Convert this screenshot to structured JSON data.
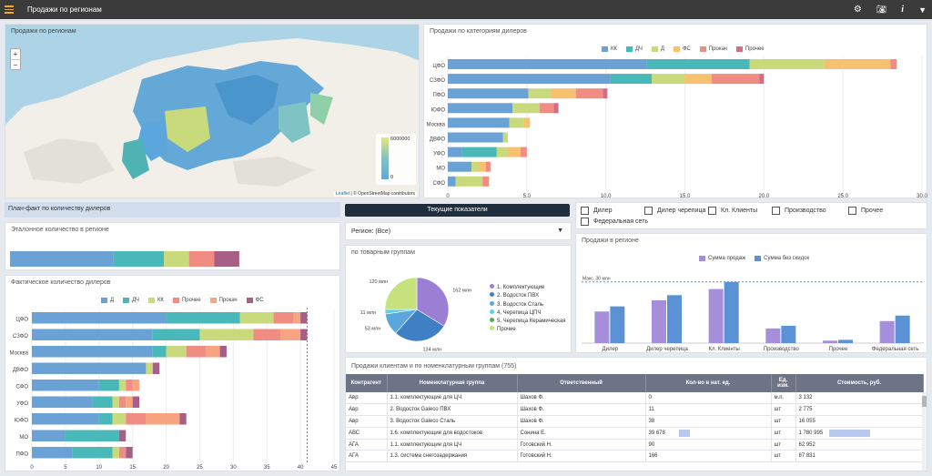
{
  "app": {
    "title": "Продажи по регионам"
  },
  "map": {
    "title": "Продажи по регионам",
    "zoom_in": "+",
    "zoom_out": "−",
    "legend_max": "6000000",
    "legend_min": "0",
    "attribution_leaflet": "Leaflet",
    "attribution_rest": " | © OpenStreetMap contributors",
    "color_high": "#e8e57a",
    "color_low": "#63a8d6"
  },
  "cat_chart": {
    "title": "Продажи по категориям дилеров",
    "legend": [
      "КК",
      "ДЧ",
      "Д",
      "ФС",
      "Прокач",
      "Прочее"
    ],
    "colors": [
      "#6aa2d6",
      "#49b8b8",
      "#c9da7c",
      "#f7c26f",
      "#f08c82",
      "#d76c83"
    ],
    "chart_data": {
      "type": "bar",
      "orientation": "horizontal",
      "stacked": true,
      "categories": [
        "ЦФО",
        "СЗФО",
        "ПФО",
        "ЮФО",
        "Москва",
        "ДВФО",
        "УФО",
        "МО",
        "СФО"
      ],
      "series": [
        {
          "name": "КК",
          "values": [
            12.6,
            10.3,
            5.1,
            4.1,
            3.9,
            3.5,
            0.9,
            1.5,
            0.5
          ]
        },
        {
          "name": "ДЧ",
          "values": [
            6.5,
            2.6,
            0,
            0,
            0,
            0,
            2.2,
            0,
            0
          ]
        },
        {
          "name": "Д",
          "values": [
            4.7,
            2.1,
            1.4,
            1.7,
            0.9,
            0.3,
            0.7,
            0.4,
            1.7
          ]
        },
        {
          "name": "ФС",
          "values": [
            4.2,
            1.7,
            1.6,
            0,
            0.4,
            0,
            0.8,
            0.5,
            0
          ]
        },
        {
          "name": "Прокач",
          "values": [
            0.4,
            3.0,
            1.7,
            0.9,
            0,
            0,
            0.4,
            0.3,
            0.4
          ]
        },
        {
          "name": "Прочее",
          "values": [
            0,
            0.3,
            0.3,
            0.3,
            0,
            0,
            0,
            0,
            0
          ]
        }
      ],
      "xlim": [
        0,
        30
      ],
      "ticks": [
        "0",
        "5.0",
        "10.0",
        "15.0",
        "20.0",
        "25.0",
        "30.0"
      ]
    }
  },
  "plan_fact": {
    "title": "План-факт по количеству дилеров"
  },
  "etalon": {
    "title": "Эталонное количество в регионе",
    "chart_data": {
      "type": "bar",
      "orientation": "horizontal",
      "stacked": true,
      "series": [
        {
          "name": "Д",
          "values": [
            0.35
          ]
        },
        {
          "name": "ДЧ",
          "values": [
            0.17
          ]
        },
        {
          "name": "КК",
          "values": [
            0.085
          ]
        },
        {
          "name": "Прочее",
          "values": [
            0.085
          ]
        },
        {
          "name": "ФС",
          "values": [
            0.085
          ]
        }
      ],
      "colors": [
        "#6aa2d6",
        "#49b8b8",
        "#c9da7c",
        "#f08c82",
        "#a85f86"
      ]
    }
  },
  "fact": {
    "title": "Фактическое количество дилеров",
    "legend": [
      "Д",
      "ДЧ",
      "КК",
      "Прочее",
      "Прокач",
      "ФС"
    ],
    "colors": [
      "#6aa2d6",
      "#49b8b8",
      "#c9da7c",
      "#f08c82",
      "#f7a581",
      "#a85f86"
    ],
    "chart_data": {
      "type": "bar",
      "orientation": "horizontal",
      "stacked": true,
      "categories": [
        "ЦФО",
        "СЗФО",
        "Москва",
        "ДВФО",
        "СФО",
        "УФО",
        "ЮФО",
        "МО",
        "ПФО"
      ],
      "series": [
        {
          "name": "Д",
          "values": [
            20,
            18,
            18,
            17,
            10,
            9,
            10,
            5,
            6
          ]
        },
        {
          "name": "ДЧ",
          "values": [
            11,
            7,
            2,
            0,
            3,
            3,
            2,
            8,
            6
          ]
        },
        {
          "name": "КК",
          "values": [
            5,
            8,
            3,
            1,
            1,
            1,
            2,
            0,
            1
          ]
        },
        {
          "name": "Прочее",
          "values": [
            3,
            4,
            3,
            0,
            1,
            1,
            3,
            0,
            1
          ]
        },
        {
          "name": "Прокач",
          "values": [
            1,
            3,
            2,
            0,
            1,
            1,
            5,
            0,
            0
          ]
        },
        {
          "name": "ФС",
          "values": [
            1,
            1,
            1,
            1,
            0,
            1,
            1,
            1,
            1
          ]
        }
      ],
      "xlim": [
        0,
        45
      ],
      "ticks": [
        "0",
        "5",
        "10",
        "15",
        "20",
        "25",
        "30",
        "35",
        "40",
        "45"
      ],
      "reference_x": 41
    }
  },
  "current": {
    "button": "Текущие показатели",
    "region_select": "Регион: (Все)"
  },
  "pie": {
    "title": "по товарным группам",
    "chart_data": {
      "type": "pie",
      "labels": [
        "1. Комплектующие",
        "2. Водосток ПВХ",
        "3. Водосток Сталь",
        "4. Черепица ЦПЧ",
        "5. Черепица Керамическая",
        "Прочие"
      ],
      "values": [
        162,
        134,
        53,
        11,
        0,
        120
      ],
      "value_labels": [
        "162 млн",
        "134 млн",
        "53 млн",
        "11 млн",
        "",
        "120 млн"
      ],
      "colors": [
        "#9b7fd4",
        "#3f7fc4",
        "#5aa6dd",
        "#5fd0e0",
        "#5aaa5a",
        "#c7e17c"
      ]
    }
  },
  "filters": {
    "items": [
      "Дилер",
      "Дилер черепица",
      "Кл. Клиенты",
      "Производство",
      "Прочее",
      "Федеральная сеть"
    ]
  },
  "region_sales": {
    "title": "Продажи в регионе",
    "legend": [
      "Сумма продаж",
      "Сумма без скидок"
    ],
    "colors": [
      "#a58fdb",
      "#5b92d6"
    ],
    "max_label": "Макс. 30 млн",
    "chart_data": {
      "type": "bar",
      "categories": [
        "Дилер",
        "Дилер черепица",
        "Кл. Клиенты",
        "Производство",
        "Прочее",
        "Федеральная сеть"
      ],
      "series": [
        {
          "name": "Сумма продаж",
          "values": [
            15.5,
            21,
            26.5,
            7.2,
            1.2,
            10.8
          ]
        },
        {
          "name": "Сумма без скидок",
          "values": [
            18,
            23.5,
            30,
            8.5,
            1.6,
            13.5
          ]
        }
      ],
      "ylim": [
        0,
        33
      ]
    }
  },
  "clients_table": {
    "title": "Продажи клиентам и по номенклатурным группам (755)",
    "columns": [
      "Контрагент",
      "Номенклатурная группа",
      "Ответственный",
      "Кол-во в нат. ед.",
      "Ед. изм.",
      "Стоимость, руб."
    ],
    "rows": [
      {
        "c": "Авр",
        "g": "1.1. комплектующие для ЦЧ",
        "o": "Шахов Ф.",
        "q": "0",
        "u": "м.п.",
        "s": "3 132",
        "qb": 0,
        "sb": 0
      },
      {
        "c": "Авр",
        "g": "2. Водосток Galeco ПВХ",
        "o": "Шахов Ф.",
        "q": "11",
        "u": "шт",
        "s": "2 775",
        "qb": 0,
        "sb": 0
      },
      {
        "c": "Авр",
        "g": "3. Водосток Galeco Сталь",
        "o": "Шахов Ф.",
        "q": "38",
        "u": "шт",
        "s": "16 055",
        "qb": 0,
        "sb": 0
      },
      {
        "c": "АВС",
        "g": "1.6. комплектующие для водостоков",
        "o": "Сонина Е.",
        "q": "39 678",
        "u": "шт",
        "s": "1 780 995",
        "qb": 0.12,
        "sb": 0.45
      },
      {
        "c": "АГА",
        "g": "1.1. комплектующие для ЦЧ",
        "o": "Готовский Н.",
        "q": "90",
        "u": "шт",
        "s": "62 952",
        "qb": 0,
        "sb": 0
      },
      {
        "c": "АГА",
        "g": "1.3. система снегозадержания",
        "o": "Готовский Н.",
        "q": "166",
        "u": "шт",
        "s": "87 831",
        "qb": 0,
        "sb": 0
      }
    ]
  }
}
